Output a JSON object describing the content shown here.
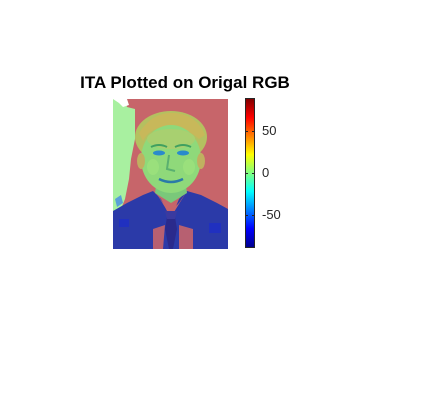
{
  "figure": {
    "title": "ITA Plotted on Origal RGB"
  },
  "colorbar": {
    "colormap": "jet",
    "ticks": [
      {
        "value": 50,
        "label": "50"
      },
      {
        "value": 0,
        "label": "0"
      },
      {
        "value": -50,
        "label": "-50"
      }
    ],
    "range": [
      -85,
      85
    ]
  },
  "colors": {
    "background": "#c7656a",
    "suit": "#2b3aa8",
    "face": "#8fd97a",
    "hair": "#b4c060",
    "left_patch": "#a8f0a0",
    "tie": "#2a2a8c",
    "shirt": "#c7656a"
  }
}
